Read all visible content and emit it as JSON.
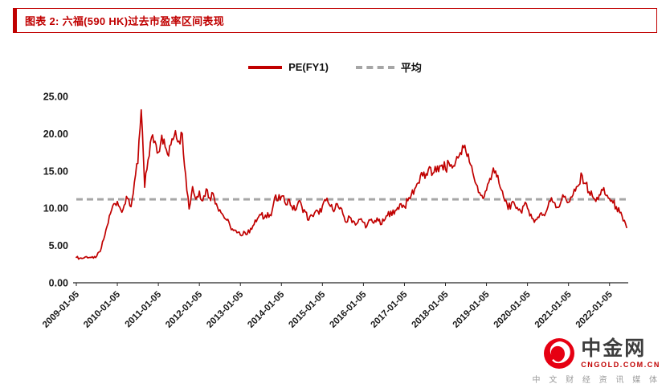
{
  "banner": {
    "title": "图表 2: 六福(590 HK)过去市盈率区间表现",
    "accent_color": "#C00000"
  },
  "legend": {
    "items": [
      {
        "label": "PE(FY1)",
        "color": "#C00000",
        "style": "solid"
      },
      {
        "label": "平均",
        "color": "#A6A6A6",
        "style": "dashed"
      }
    ]
  },
  "chart_data": {
    "type": "line",
    "title": "六福(590 HK)过去市盈率区间表现",
    "xlabel": "",
    "ylabel": "",
    "ylim": [
      0,
      25
    ],
    "y_tick_step": 5,
    "y_tick_labels": [
      "0.00",
      "5.00",
      "10.00",
      "15.00",
      "20.00",
      "25.00"
    ],
    "x_tick_labels": [
      "2009-01-05",
      "2010-01-05",
      "2011-01-05",
      "2012-01-05",
      "2013-01-05",
      "2014-01-05",
      "2015-01-05",
      "2016-01-05",
      "2017-01-05",
      "2018-01-05",
      "2019-01-05",
      "2020-01-05",
      "2021-01-05",
      "2022-01-05"
    ],
    "x_start": "2009-01",
    "frequency": "monthly",
    "grid": false,
    "legend_position": "top",
    "series": [
      {
        "name": "PE(FY1)",
        "color": "#C00000",
        "style": "solid",
        "values": [
          3.4,
          3.3,
          3.3,
          3.5,
          3.4,
          3.3,
          3.6,
          4.2,
          5.8,
          7.6,
          9.3,
          10.6,
          10.9,
          9.8,
          10.4,
          11.3,
          10.2,
          13.5,
          16.0,
          23.2,
          12.8,
          16.5,
          19.5,
          19.0,
          17.5,
          19.8,
          18.2,
          17.0,
          19.3,
          20.4,
          19.0,
          20.0,
          14.5,
          9.9,
          12.9,
          11.2,
          12.3,
          11.0,
          12.6,
          11.4,
          12.0,
          10.6,
          9.8,
          9.0,
          8.4,
          7.6,
          7.0,
          6.7,
          6.4,
          6.9,
          6.5,
          7.3,
          7.8,
          8.6,
          9.1,
          8.7,
          9.4,
          9.0,
          11.4,
          11.0,
          11.6,
          10.8,
          11.2,
          10.3,
          9.7,
          10.9,
          10.2,
          9.5,
          8.4,
          9.0,
          9.6,
          9.2,
          10.3,
          11.0,
          10.5,
          9.8,
          10.6,
          9.9,
          9.2,
          8.1,
          8.8,
          8.3,
          7.9,
          8.5,
          8.1,
          7.6,
          8.4,
          8.0,
          8.7,
          7.8,
          8.3,
          9.0,
          9.6,
          9.2,
          10.1,
          10.6,
          10.2,
          11.0,
          11.8,
          12.6,
          13.4,
          14.8,
          14.0,
          15.2,
          14.4,
          15.6,
          14.9,
          15.8,
          15.2,
          16.1,
          15.4,
          16.3,
          17.0,
          18.4,
          17.6,
          16.2,
          14.8,
          13.2,
          12.1,
          11.3,
          12.4,
          14.0,
          15.4,
          14.2,
          12.8,
          11.5,
          10.6,
          9.9,
          10.8,
          10.1,
          9.6,
          10.4,
          10.0,
          9.2,
          8.1,
          8.8,
          9.4,
          9.0,
          10.2,
          11.4,
          10.7,
          10.1,
          11.2,
          11.6,
          10.8,
          11.5,
          12.3,
          13.1,
          14.4,
          13.3,
          12.2,
          11.6,
          10.9,
          11.8,
          12.4,
          11.7,
          11.3,
          10.7,
          10.2,
          9.4,
          8.3,
          7.4
        ]
      },
      {
        "name": "平均",
        "color": "#A6A6A6",
        "style": "dashed",
        "value": 11.2
      }
    ]
  },
  "watermark": {
    "brand": "中金网",
    "domain": "CNGOLD.COM.CN",
    "tagline": "中 文 财 经 资 讯 媒 体",
    "logo_color": "#E60012"
  }
}
